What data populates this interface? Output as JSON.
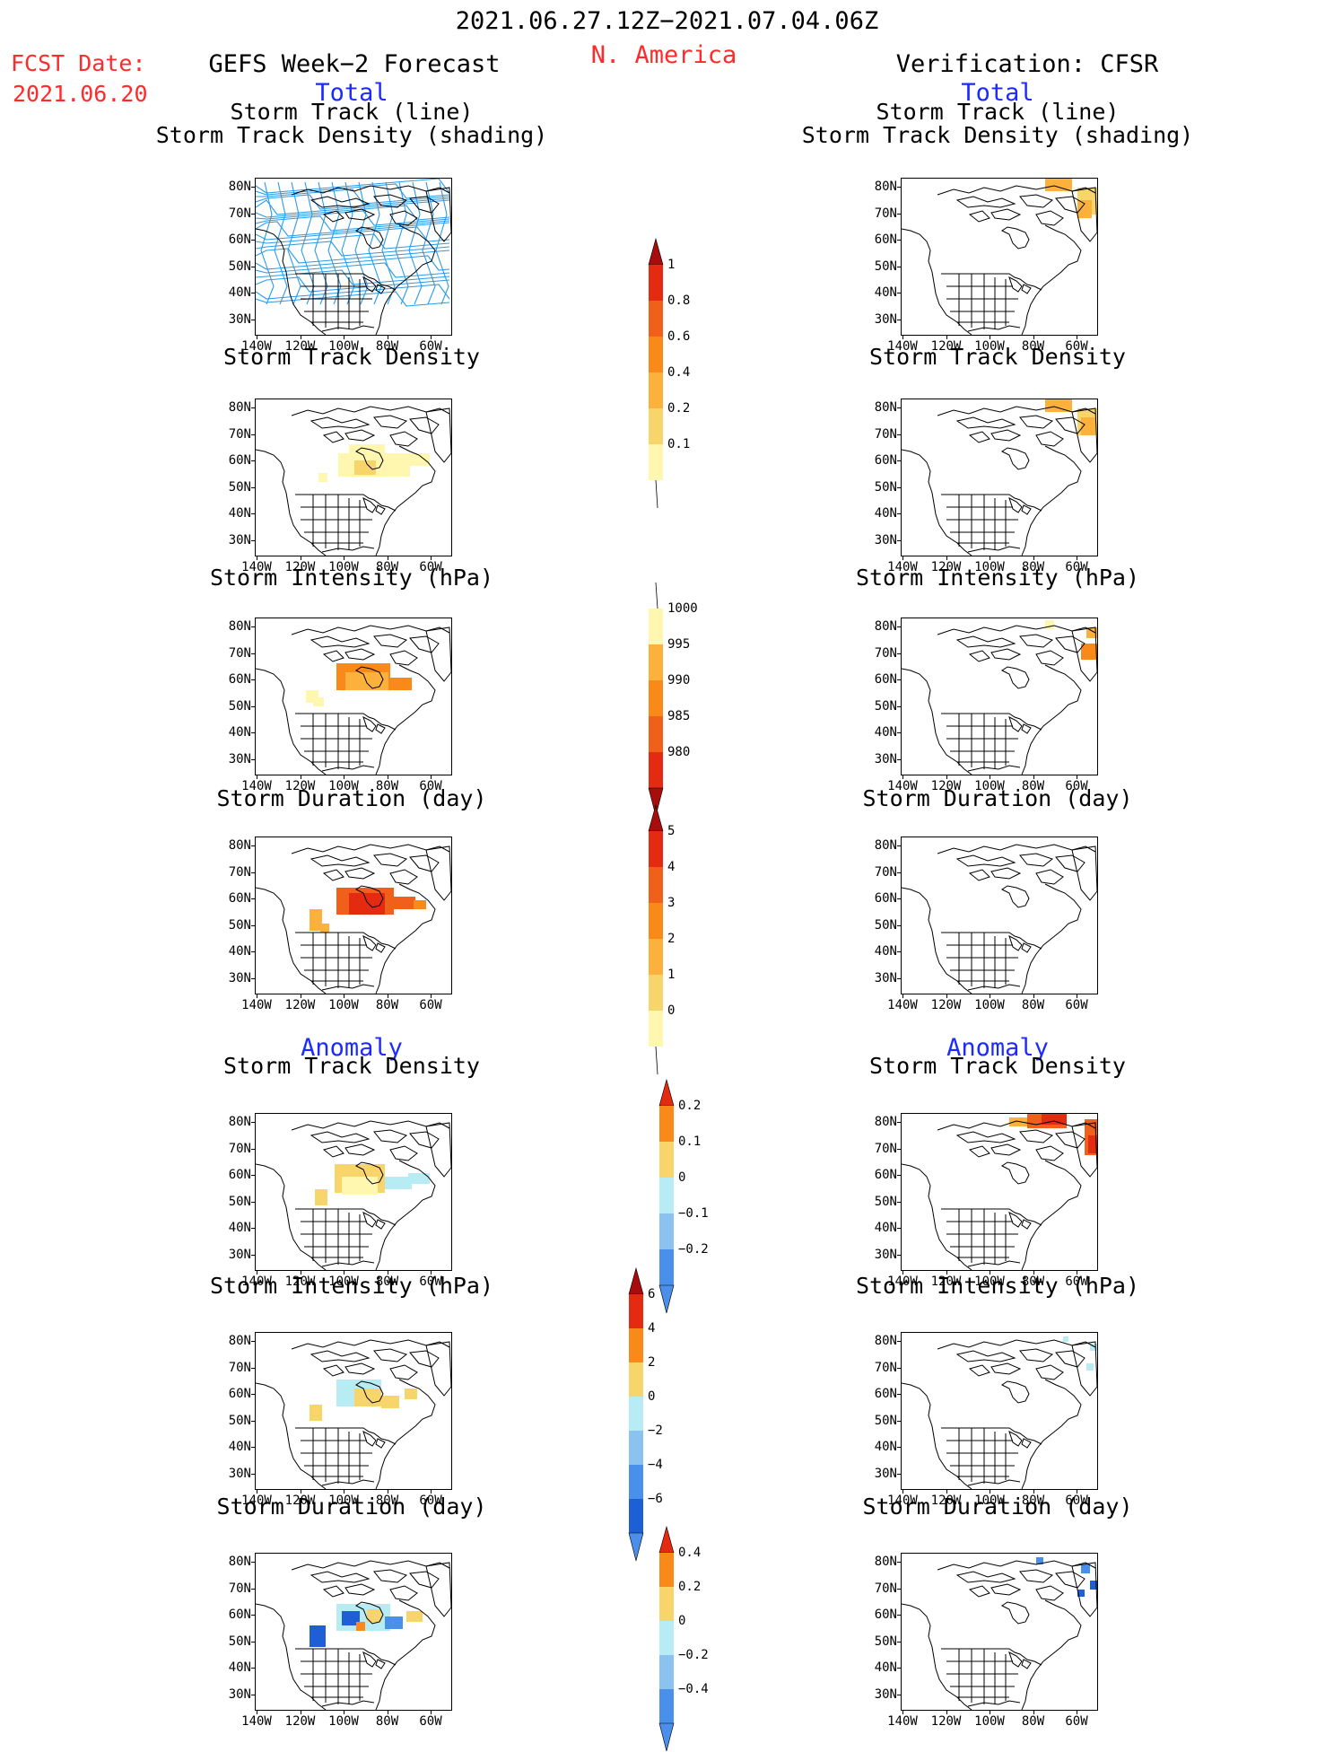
{
  "header": {
    "period": "2021.06.27.12Z−2021.07.04.06Z",
    "region": "N. America",
    "fcst_label": "FCST Date:",
    "fcst_date": "2021.06.20",
    "left_title": "GEFS Week−2 Forecast",
    "right_title": "Verification: CFSR",
    "total_label": "Total",
    "anomaly_label": "Anomaly"
  },
  "panel_titles": {
    "track_line": "Storm Track (line)",
    "track_shading": "Storm Track Density (shading)",
    "density": "Storm Track Density",
    "intensity": "Storm Intensity (hPa)",
    "duration": "Storm Duration (day)"
  },
  "axes": {
    "lat_labels": [
      "80N",
      "70N",
      "60N",
      "50N",
      "40N",
      "30N"
    ],
    "lon_labels": [
      "140W",
      "120W",
      "100W",
      "80W",
      "60W"
    ]
  },
  "colorbars": {
    "density_total": [
      "1",
      "0.8",
      "0.6",
      "0.4",
      "0.2",
      "0.1"
    ],
    "intensity_total": [
      "1000",
      "995",
      "990",
      "985",
      "980"
    ],
    "duration_total": [
      "5",
      "4",
      "3",
      "2",
      "1",
      "0"
    ],
    "density_anom": [
      "0.2",
      "0.1",
      "0",
      "−0.1",
      "−0.2"
    ],
    "intensity_anom": [
      "6",
      "4",
      "2",
      "0",
      "−2",
      "−4",
      "−6"
    ],
    "duration_anom": [
      "0.4",
      "0.2",
      "0",
      "−0.2",
      "−0.4"
    ]
  },
  "colors": {
    "pale_yellow": "#fff7b0",
    "yellow": "#f7d56b",
    "light_orange": "#fbb13c",
    "orange": "#f98a1a",
    "dark_orange": "#f0601a",
    "red": "#e52a12",
    "dark_red": "#a80d0d",
    "light_blue": "#b7ecf5",
    "mid_blue": "#8ac2f0",
    "blue": "#4a8fea",
    "dark_blue": "#1f5fd6",
    "track_line": "#2a9be8",
    "header_red": "#ff2a2a",
    "header_blue": "#1b2bff"
  }
}
